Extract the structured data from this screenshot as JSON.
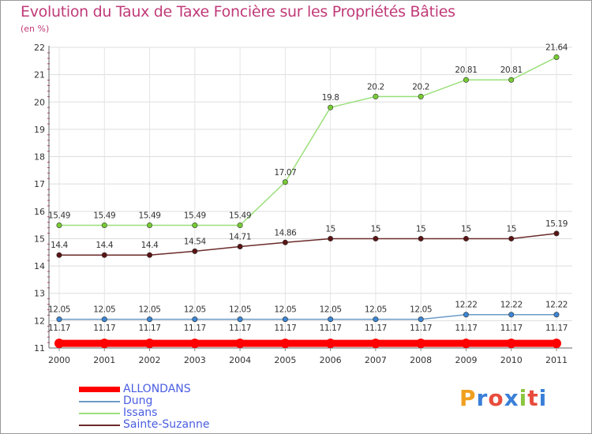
{
  "title": "Evolution du Taux de Taxe Foncière sur les Propriétés Bâties",
  "unit_label": "(en %)",
  "logo": {
    "text": "Proxiti",
    "colors": [
      "#f0a020",
      "#3a7fd8",
      "#e84c3c",
      "#3a7fd8",
      "#8cc63f",
      "#e84c3c",
      "#3a7fd8"
    ]
  },
  "chart_data": {
    "type": "line",
    "title": "Evolution du Taux de Taxe Foncière sur les Propriétés Bâties",
    "ylabel": "(en %)",
    "xlabel": "",
    "ylim": [
      11,
      22
    ],
    "yticks": [
      "11",
      "12",
      "13",
      "14",
      "15",
      "16",
      "17",
      "18",
      "19",
      "20",
      "21",
      "22"
    ],
    "categories": [
      "2000",
      "2001",
      "2002",
      "2003",
      "2004",
      "2005",
      "2006",
      "2007",
      "2008",
      "2009",
      "2010",
      "2011"
    ],
    "grid": true,
    "series": [
      {
        "name": "ALLONDANS",
        "color": "#ff0000",
        "marker": "#ff0000",
        "thick": true,
        "values": [
          11.17,
          11.17,
          11.17,
          11.17,
          11.17,
          11.17,
          11.17,
          11.17,
          11.17,
          11.17,
          11.17,
          11.17
        ],
        "labels": [
          "11.17",
          "11.17",
          "11.17",
          "11.17",
          "11.17",
          "11.17",
          "11.17",
          "11.17",
          "11.17",
          "11.17",
          "11.17",
          "11.17"
        ]
      },
      {
        "name": "Dung",
        "color": "#6b9bc7",
        "marker": "#3b86d4",
        "thick": false,
        "values": [
          12.05,
          12.05,
          12.05,
          12.05,
          12.05,
          12.05,
          12.05,
          12.05,
          12.05,
          12.22,
          12.22,
          12.22
        ],
        "labels": [
          "12.05",
          "12.05",
          "12.05",
          "12.05",
          "12.05",
          "12.05",
          "12.05",
          "12.05",
          "12.05",
          "12.22",
          "12.22",
          "12.22"
        ]
      },
      {
        "name": "Issans",
        "color": "#9be07a",
        "marker": "#77cc33",
        "thick": false,
        "values": [
          15.49,
          15.49,
          15.49,
          15.49,
          15.49,
          17.07,
          19.8,
          20.2,
          20.2,
          20.81,
          20.81,
          21.64
        ],
        "labels": [
          "15.49",
          "15.49",
          "15.49",
          "15.49",
          "15.49",
          "17.07",
          "19.8",
          "20.2",
          "20.2",
          "20.81",
          "20.81",
          "21.64"
        ]
      },
      {
        "name": "Sainte-Suzanne",
        "color": "#6b2a2a",
        "marker": "#5a1414",
        "thick": false,
        "values": [
          14.4,
          14.4,
          14.4,
          14.54,
          14.71,
          14.86,
          15,
          15,
          15,
          15,
          15,
          15.19
        ],
        "labels": [
          "14.4",
          "14.4",
          "14.4",
          "14.54",
          "14.71",
          "14.86",
          "15",
          "15",
          "15",
          "15",
          "15",
          "15.19"
        ]
      }
    ],
    "legend": "bottom-left"
  }
}
